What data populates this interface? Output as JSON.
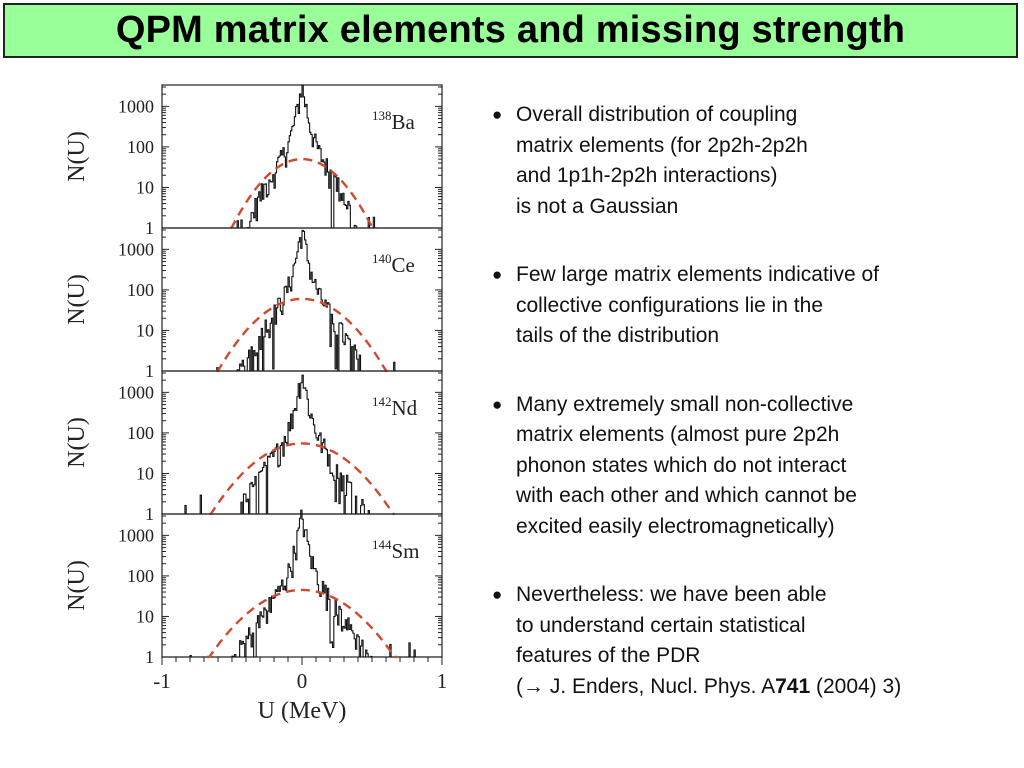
{
  "title": "QPM matrix elements and missing strength",
  "colors": {
    "title_bg": "#99ff99",
    "histogram": "#111111",
    "gaussian_fit": "#d04a2e"
  },
  "bullets": [
    {
      "lines": [
        "Overall distribution of coupling",
        "matrix elements (for 2p2h-2p2h",
        "and 1p1h-2p2h interactions)",
        "is not a Gaussian"
      ]
    },
    {
      "lines": [
        "Few large matrix elements indicative of",
        "collective configurations lie in the",
        "tails of the distribution"
      ]
    },
    {
      "lines": [
        "Many extremely small non-collective",
        "matrix elements (almost pure 2p2h",
        "phonon states which do not interact",
        "with each other and which cannot be",
        "excited easily electromagnetically)"
      ]
    },
    {
      "lines": [
        "Nevertheless: we have been able",
        "to understand certain statistical",
        "features of the PDR"
      ]
    }
  ],
  "reference": {
    "open": "(",
    "arrow": "→",
    "text": " J. Enders, Nucl. Phys. A",
    "volume": "741",
    "rest": " (2004) 3)"
  },
  "chart_data": {
    "type": "histogram",
    "xlabel": "U (MeV)",
    "ylabel": "N(U)",
    "xlim": [
      -1.0,
      1.0
    ],
    "xticks": [
      -1,
      0,
      1
    ],
    "ylim": [
      1,
      3000
    ],
    "yscale": "log",
    "yticks": [
      1,
      10,
      100,
      1000
    ],
    "panels": [
      {
        "nucleus": "Ba",
        "mass": "138",
        "peak": 3000,
        "gaussian_peak": 50,
        "gaussian_sigma": 0.18,
        "tail_width": 0.42
      },
      {
        "nucleus": "Ce",
        "mass": "140",
        "peak": 3000,
        "gaussian_peak": 60,
        "gaussian_sigma": 0.21,
        "tail_width": 0.52
      },
      {
        "nucleus": "Nd",
        "mass": "142",
        "peak": 3000,
        "gaussian_peak": 55,
        "gaussian_sigma": 0.23,
        "tail_width": 0.58
      },
      {
        "nucleus": "Sm",
        "mass": "144",
        "peak": 3000,
        "gaussian_peak": 45,
        "gaussian_sigma": 0.24,
        "tail_width": 0.62
      }
    ]
  }
}
